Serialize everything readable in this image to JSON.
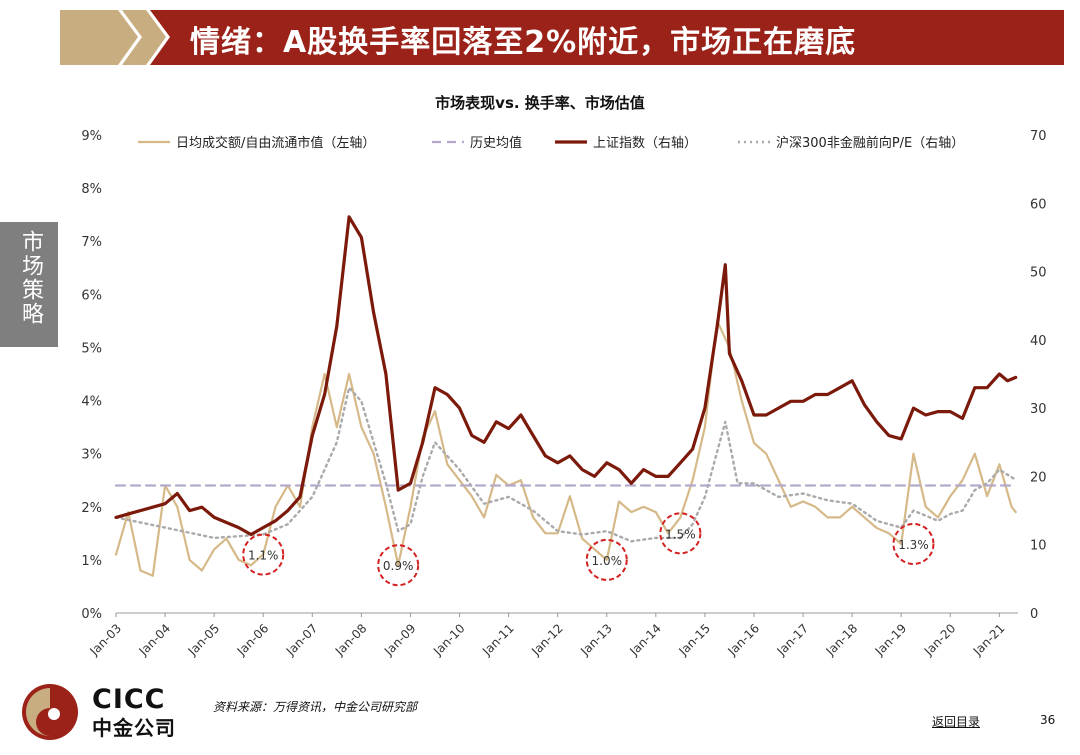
{
  "header": {
    "title": "情绪：A股换手率回落至2%附近，市场正在磨底"
  },
  "side_tab": {
    "label": "市场策略"
  },
  "footer": {
    "source": "资料来源：万得资讯，中金公司研究部",
    "back_link": "返回目录",
    "page_number": "36",
    "logo_en": "CICC",
    "logo_cn": "中金公司"
  },
  "colors": {
    "title_band": "#9b2218",
    "gold": "#c8ad80",
    "turnover": "#d6b988",
    "hist_mean": "#b3aacb",
    "shci": "#7b1a0b",
    "pe": "#aaaaaa",
    "circle": "#d42020"
  },
  "chart_data": {
    "type": "line",
    "title": "市场表现vs. 换手率、市场估值",
    "x_range": [
      "2003-01",
      "2021-05"
    ],
    "x_ticks": [
      "Jan-03",
      "Jan-04",
      "Jan-05",
      "Jan-06",
      "Jan-07",
      "Jan-08",
      "Jan-09",
      "Jan-10",
      "Jan-11",
      "Jan-12",
      "Jan-13",
      "Jan-14",
      "Jan-15",
      "Jan-16",
      "Jan-17",
      "Jan-18",
      "Jan-19",
      "Jan-20",
      "Jan-21"
    ],
    "y_left": {
      "range": [
        0,
        9
      ],
      "ticks": [
        "0%",
        "1%",
        "2%",
        "3%",
        "4%",
        "5%",
        "6%",
        "7%",
        "8%",
        "9%"
      ]
    },
    "y_right": {
      "range": [
        0,
        70
      ],
      "ticks": [
        "0",
        "10",
        "20",
        "30",
        "40",
        "50",
        "60",
        "70"
      ]
    },
    "legend_position": "top",
    "series": [
      {
        "name": "日均成交额/自由流通市值（左轴）",
        "axis": "left",
        "style": "solid-thin",
        "points": [
          [
            "2003-01",
            1.1
          ],
          [
            "2003-04",
            1.9
          ],
          [
            "2003-07",
            0.8
          ],
          [
            "2003-10",
            0.7
          ],
          [
            "2004-01",
            2.4
          ],
          [
            "2004-04",
            2.0
          ],
          [
            "2004-07",
            1.0
          ],
          [
            "2004-10",
            0.8
          ],
          [
            "2005-01",
            1.2
          ],
          [
            "2005-04",
            1.4
          ],
          [
            "2005-07",
            1.0
          ],
          [
            "2005-10",
            0.9
          ],
          [
            "2006-01",
            1.1
          ],
          [
            "2006-04",
            2.0
          ],
          [
            "2006-07",
            2.4
          ],
          [
            "2006-10",
            2.0
          ],
          [
            "2007-01",
            3.5
          ],
          [
            "2007-04",
            4.5
          ],
          [
            "2007-07",
            3.5
          ],
          [
            "2007-10",
            4.5
          ],
          [
            "2008-01",
            3.5
          ],
          [
            "2008-04",
            3.0
          ],
          [
            "2008-07",
            2.0
          ],
          [
            "2008-10",
            0.9
          ],
          [
            "2009-01",
            2.0
          ],
          [
            "2009-04",
            3.3
          ],
          [
            "2009-07",
            3.8
          ],
          [
            "2009-10",
            2.8
          ],
          [
            "2010-01",
            2.5
          ],
          [
            "2010-04",
            2.2
          ],
          [
            "2010-07",
            1.8
          ],
          [
            "2010-10",
            2.6
          ],
          [
            "2011-01",
            2.4
          ],
          [
            "2011-04",
            2.5
          ],
          [
            "2011-07",
            1.8
          ],
          [
            "2011-10",
            1.5
          ],
          [
            "2012-01",
            1.5
          ],
          [
            "2012-04",
            2.2
          ],
          [
            "2012-07",
            1.4
          ],
          [
            "2012-10",
            1.2
          ],
          [
            "2013-01",
            1.0
          ],
          [
            "2013-04",
            2.1
          ],
          [
            "2013-07",
            1.9
          ],
          [
            "2013-10",
            2.0
          ],
          [
            "2014-01",
            1.9
          ],
          [
            "2014-04",
            1.5
          ],
          [
            "2014-07",
            1.8
          ],
          [
            "2014-10",
            2.5
          ],
          [
            "2015-01",
            3.5
          ],
          [
            "2015-04",
            5.5
          ],
          [
            "2015-07",
            5.0
          ],
          [
            "2015-10",
            4.0
          ],
          [
            "2016-01",
            3.2
          ],
          [
            "2016-04",
            3.0
          ],
          [
            "2016-07",
            2.5
          ],
          [
            "2016-10",
            2.0
          ],
          [
            "2017-01",
            2.1
          ],
          [
            "2017-04",
            2.0
          ],
          [
            "2017-07",
            1.8
          ],
          [
            "2017-10",
            1.8
          ],
          [
            "2018-01",
            2.0
          ],
          [
            "2018-04",
            1.8
          ],
          [
            "2018-07",
            1.6
          ],
          [
            "2018-10",
            1.5
          ],
          [
            "2019-01",
            1.3
          ],
          [
            "2019-04",
            3.0
          ],
          [
            "2019-07",
            2.0
          ],
          [
            "2019-10",
            1.8
          ],
          [
            "2020-01",
            2.2
          ],
          [
            "2020-04",
            2.5
          ],
          [
            "2020-07",
            3.0
          ],
          [
            "2020-10",
            2.2
          ],
          [
            "2021-01",
            2.8
          ],
          [
            "2021-04",
            2.0
          ],
          [
            "2021-05",
            1.9
          ]
        ]
      },
      {
        "name": "历史均值",
        "axis": "left",
        "style": "dashed",
        "points": [
          [
            "2003-01",
            2.4
          ],
          [
            "2021-05",
            2.4
          ]
        ]
      },
      {
        "name": "上证指数（右轴）",
        "axis": "right",
        "style": "solid-thick",
        "points": [
          [
            "2003-01",
            14.0
          ],
          [
            "2003-07",
            15.0
          ],
          [
            "2004-01",
            16.0
          ],
          [
            "2004-04",
            17.5
          ],
          [
            "2004-07",
            15.0
          ],
          [
            "2004-10",
            15.5
          ],
          [
            "2005-01",
            14.0
          ],
          [
            "2005-07",
            12.5
          ],
          [
            "2005-10",
            11.5
          ],
          [
            "2006-01",
            12.5
          ],
          [
            "2006-04",
            13.5
          ],
          [
            "2006-07",
            15.0
          ],
          [
            "2006-10",
            17.0
          ],
          [
            "2007-01",
            26.0
          ],
          [
            "2007-04",
            32.0
          ],
          [
            "2007-07",
            42.0
          ],
          [
            "2007-10",
            58.0
          ],
          [
            "2008-01",
            55.0
          ],
          [
            "2008-04",
            44.0
          ],
          [
            "2008-07",
            35.0
          ],
          [
            "2008-10",
            18.0
          ],
          [
            "2009-01",
            19.0
          ],
          [
            "2009-04",
            25.0
          ],
          [
            "2009-07",
            33.0
          ],
          [
            "2009-10",
            32.0
          ],
          [
            "2010-01",
            30.0
          ],
          [
            "2010-04",
            26.0
          ],
          [
            "2010-07",
            25.0
          ],
          [
            "2010-10",
            28.0
          ],
          [
            "2011-01",
            27.0
          ],
          [
            "2011-04",
            29.0
          ],
          [
            "2011-07",
            26.0
          ],
          [
            "2011-10",
            23.0
          ],
          [
            "2012-01",
            22.0
          ],
          [
            "2012-04",
            23.0
          ],
          [
            "2012-07",
            21.0
          ],
          [
            "2012-10",
            20.0
          ],
          [
            "2013-01",
            22.0
          ],
          [
            "2013-04",
            21.0
          ],
          [
            "2013-07",
            19.0
          ],
          [
            "2013-10",
            21.0
          ],
          [
            "2014-01",
            20.0
          ],
          [
            "2014-04",
            20.0
          ],
          [
            "2014-07",
            22.0
          ],
          [
            "2014-10",
            24.0
          ],
          [
            "2015-01",
            30.0
          ],
          [
            "2015-04",
            42.0
          ],
          [
            "2015-06",
            51.0
          ],
          [
            "2015-07",
            38.0
          ],
          [
            "2015-10",
            34.0
          ],
          [
            "2016-01",
            29.0
          ],
          [
            "2016-04",
            29.0
          ],
          [
            "2016-07",
            30.0
          ],
          [
            "2016-10",
            31.0
          ],
          [
            "2017-01",
            31.0
          ],
          [
            "2017-04",
            32.0
          ],
          [
            "2017-07",
            32.0
          ],
          [
            "2017-10",
            33.0
          ],
          [
            "2018-01",
            34.0
          ],
          [
            "2018-04",
            30.5
          ],
          [
            "2018-07",
            28.0
          ],
          [
            "2018-10",
            26.0
          ],
          [
            "2019-01",
            25.5
          ],
          [
            "2019-04",
            30.0
          ],
          [
            "2019-07",
            29.0
          ],
          [
            "2019-10",
            29.5
          ],
          [
            "2020-01",
            29.5
          ],
          [
            "2020-04",
            28.5
          ],
          [
            "2020-07",
            33.0
          ],
          [
            "2020-10",
            33.0
          ],
          [
            "2021-01",
            35.0
          ],
          [
            "2021-03",
            34.0
          ],
          [
            "2021-05",
            34.5
          ]
        ]
      },
      {
        "name": "沪深300非金融前向P/E（右轴）",
        "axis": "right",
        "style": "dotted",
        "points": [
          [
            "2003-01",
            14.0
          ],
          [
            "2004-01",
            12.5
          ],
          [
            "2005-01",
            11.0
          ],
          [
            "2006-01",
            11.5
          ],
          [
            "2006-07",
            13.0
          ],
          [
            "2007-01",
            17.0
          ],
          [
            "2007-07",
            25.0
          ],
          [
            "2007-10",
            33.0
          ],
          [
            "2008-01",
            31.0
          ],
          [
            "2008-04",
            25.0
          ],
          [
            "2008-07",
            19.0
          ],
          [
            "2008-10",
            12.0
          ],
          [
            "2009-01",
            13.0
          ],
          [
            "2009-04",
            20.0
          ],
          [
            "2009-07",
            25.0
          ],
          [
            "2010-01",
            21.0
          ],
          [
            "2010-07",
            16.0
          ],
          [
            "2011-01",
            17.0
          ],
          [
            "2011-07",
            15.0
          ],
          [
            "2012-01",
            12.0
          ],
          [
            "2012-07",
            11.5
          ],
          [
            "2013-01",
            12.0
          ],
          [
            "2013-07",
            10.5
          ],
          [
            "2014-01",
            11.0
          ],
          [
            "2014-07",
            11.0
          ],
          [
            "2014-10",
            13.0
          ],
          [
            "2015-01",
            17.0
          ],
          [
            "2015-06",
            28.0
          ],
          [
            "2015-09",
            19.0
          ],
          [
            "2016-01",
            19.0
          ],
          [
            "2016-07",
            17.0
          ],
          [
            "2017-01",
            17.5
          ],
          [
            "2017-07",
            16.5
          ],
          [
            "2018-01",
            16.0
          ],
          [
            "2018-07",
            13.5
          ],
          [
            "2019-01",
            12.5
          ],
          [
            "2019-04",
            15.0
          ],
          [
            "2019-10",
            13.5
          ],
          [
            "2020-01",
            14.5
          ],
          [
            "2020-04",
            15.0
          ],
          [
            "2020-07",
            18.0
          ],
          [
            "2020-10",
            19.0
          ],
          [
            "2021-01",
            21.0
          ],
          [
            "2021-05",
            19.5
          ]
        ]
      }
    ],
    "annotations": [
      {
        "label": "1.1%",
        "x": "2006-01",
        "y": 1.1
      },
      {
        "label": "0.9%",
        "x": "2008-10",
        "y": 0.9
      },
      {
        "label": "1.0%",
        "x": "2013-01",
        "y": 1.0
      },
      {
        "label": "1.5%",
        "x": "2014-07",
        "y": 1.5
      },
      {
        "label": "1.3%",
        "x": "2019-04",
        "y": 1.3
      }
    ]
  }
}
